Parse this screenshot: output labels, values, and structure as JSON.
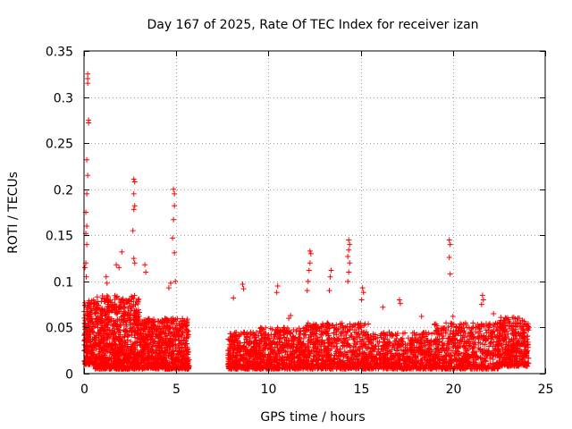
{
  "chart_data": {
    "type": "scatter",
    "title": "Day 167 of 2025, Rate Of TEC Index for receiver izan",
    "xlabel": "GPS time / hours",
    "ylabel": "ROTI / TECUs",
    "xlim": [
      0,
      25
    ],
    "ylim": [
      0,
      0.35
    ],
    "x_ticks": [
      "0",
      "5",
      "10",
      "15",
      "20",
      "25"
    ],
    "y_ticks": [
      "0",
      "0.05",
      "0.1",
      "0.15",
      "0.2",
      "0.25",
      "0.3",
      "0.35"
    ],
    "grid": true,
    "marker": "plus",
    "color": "#ff0000",
    "series": [
      {
        "name": "ROTI",
        "note": "dense cloud of points; data gap roughly between 5.7 h and 7.8 h",
        "outliers": [
          {
            "x": 0.2,
            "y": 0.325
          },
          {
            "x": 0.2,
            "y": 0.32
          },
          {
            "x": 0.2,
            "y": 0.315
          },
          {
            "x": 0.25,
            "y": 0.275
          },
          {
            "x": 0.25,
            "y": 0.272
          },
          {
            "x": 0.15,
            "y": 0.232
          },
          {
            "x": 0.2,
            "y": 0.215
          },
          {
            "x": 0.15,
            "y": 0.195
          },
          {
            "x": 0.1,
            "y": 0.175
          },
          {
            "x": 0.15,
            "y": 0.16
          },
          {
            "x": 0.1,
            "y": 0.152
          },
          {
            "x": 0.15,
            "y": 0.14
          },
          {
            "x": 0.1,
            "y": 0.12
          },
          {
            "x": 0.05,
            "y": 0.115
          },
          {
            "x": 0.12,
            "y": 0.105
          },
          {
            "x": 2.7,
            "y": 0.211
          },
          {
            "x": 2.75,
            "y": 0.208
          },
          {
            "x": 2.7,
            "y": 0.195
          },
          {
            "x": 2.75,
            "y": 0.182
          },
          {
            "x": 2.7,
            "y": 0.178
          },
          {
            "x": 2.65,
            "y": 0.155
          },
          {
            "x": 2.7,
            "y": 0.125
          },
          {
            "x": 2.75,
            "y": 0.12
          },
          {
            "x": 2.05,
            "y": 0.132
          },
          {
            "x": 1.75,
            "y": 0.118
          },
          {
            "x": 1.9,
            "y": 0.115
          },
          {
            "x": 3.3,
            "y": 0.118
          },
          {
            "x": 3.35,
            "y": 0.11
          },
          {
            "x": 1.2,
            "y": 0.105
          },
          {
            "x": 1.25,
            "y": 0.098
          },
          {
            "x": 4.85,
            "y": 0.2
          },
          {
            "x": 4.9,
            "y": 0.195
          },
          {
            "x": 4.9,
            "y": 0.182
          },
          {
            "x": 4.85,
            "y": 0.167
          },
          {
            "x": 4.8,
            "y": 0.147
          },
          {
            "x": 4.9,
            "y": 0.131
          },
          {
            "x": 4.95,
            "y": 0.1
          },
          {
            "x": 4.7,
            "y": 0.098
          },
          {
            "x": 4.6,
            "y": 0.093
          },
          {
            "x": 12.25,
            "y": 0.133
          },
          {
            "x": 12.3,
            "y": 0.13
          },
          {
            "x": 12.25,
            "y": 0.12
          },
          {
            "x": 12.2,
            "y": 0.112
          },
          {
            "x": 12.15,
            "y": 0.1
          },
          {
            "x": 12.1,
            "y": 0.09
          },
          {
            "x": 14.35,
            "y": 0.145
          },
          {
            "x": 14.4,
            "y": 0.14
          },
          {
            "x": 14.35,
            "y": 0.134
          },
          {
            "x": 14.3,
            "y": 0.127
          },
          {
            "x": 14.4,
            "y": 0.12
          },
          {
            "x": 14.35,
            "y": 0.11
          },
          {
            "x": 14.3,
            "y": 0.1
          },
          {
            "x": 13.4,
            "y": 0.112
          },
          {
            "x": 13.35,
            "y": 0.105
          },
          {
            "x": 13.3,
            "y": 0.09
          },
          {
            "x": 15.1,
            "y": 0.093
          },
          {
            "x": 15.15,
            "y": 0.088
          },
          {
            "x": 15.05,
            "y": 0.08
          },
          {
            "x": 10.5,
            "y": 0.095
          },
          {
            "x": 10.45,
            "y": 0.088
          },
          {
            "x": 8.6,
            "y": 0.097
          },
          {
            "x": 8.65,
            "y": 0.092
          },
          {
            "x": 8.1,
            "y": 0.082
          },
          {
            "x": 11.2,
            "y": 0.063
          },
          {
            "x": 11.1,
            "y": 0.06
          },
          {
            "x": 17.1,
            "y": 0.08
          },
          {
            "x": 17.15,
            "y": 0.076
          },
          {
            "x": 16.2,
            "y": 0.072
          },
          {
            "x": 18.3,
            "y": 0.062
          },
          {
            "x": 19.8,
            "y": 0.145
          },
          {
            "x": 19.85,
            "y": 0.14
          },
          {
            "x": 19.8,
            "y": 0.126
          },
          {
            "x": 19.85,
            "y": 0.108
          },
          {
            "x": 21.6,
            "y": 0.085
          },
          {
            "x": 21.65,
            "y": 0.08
          },
          {
            "x": 21.55,
            "y": 0.075
          },
          {
            "x": 20.0,
            "y": 0.062
          },
          {
            "x": 22.2,
            "y": 0.065
          },
          {
            "x": 23.3,
            "y": 0.061
          },
          {
            "x": 23.6,
            "y": 0.06
          }
        ],
        "segments": [
          {
            "x_range": [
              0.0,
              0.6
            ],
            "y_range": [
              0.01,
              0.08
            ],
            "count": 220
          },
          {
            "x_range": [
              0.6,
              3.0
            ],
            "y_range": [
              0.005,
              0.085
            ],
            "count": 900
          },
          {
            "x_range": [
              3.0,
              5.7
            ],
            "y_range": [
              0.005,
              0.06
            ],
            "count": 750
          },
          {
            "x_range": [
              7.8,
              9.5
            ],
            "y_range": [
              0.005,
              0.045
            ],
            "count": 380
          },
          {
            "x_range": [
              9.5,
              12.0
            ],
            "y_range": [
              0.005,
              0.05
            ],
            "count": 520
          },
          {
            "x_range": [
              12.0,
              15.5
            ],
            "y_range": [
              0.005,
              0.055
            ],
            "count": 680
          },
          {
            "x_range": [
              15.5,
              19.0
            ],
            "y_range": [
              0.005,
              0.045
            ],
            "count": 620
          },
          {
            "x_range": [
              19.0,
              22.5
            ],
            "y_range": [
              0.005,
              0.055
            ],
            "count": 640
          },
          {
            "x_range": [
              22.5,
              24.1
            ],
            "y_range": [
              0.008,
              0.062
            ],
            "count": 380
          }
        ]
      }
    ]
  }
}
